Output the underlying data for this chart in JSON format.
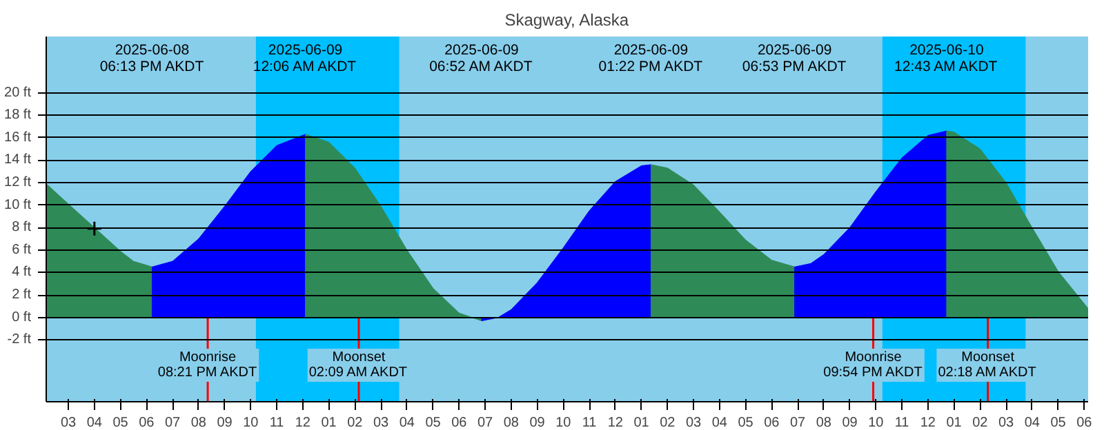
{
  "chart_data": {
    "type": "area",
    "title": "Skagway, Alaska",
    "xlim": [
      "2025-06-08T14:09",
      "2025-06-10T06:09"
    ],
    "xticks": [
      {
        "value": "2025-06-08T15:00",
        "label": "03"
      },
      {
        "value": "2025-06-08T16:00",
        "label": "04"
      },
      {
        "value": "2025-06-08T17:00",
        "label": "05"
      },
      {
        "value": "2025-06-08T18:00",
        "label": "06"
      },
      {
        "value": "2025-06-08T19:00",
        "label": "07"
      },
      {
        "value": "2025-06-08T20:00",
        "label": "08"
      },
      {
        "value": "2025-06-08T21:00",
        "label": "09"
      },
      {
        "value": "2025-06-08T22:00",
        "label": "10"
      },
      {
        "value": "2025-06-08T23:00",
        "label": "11"
      },
      {
        "value": "2025-06-09T00:00",
        "label": "12"
      },
      {
        "value": "2025-06-09T01:00",
        "label": "01"
      },
      {
        "value": "2025-06-09T02:00",
        "label": "02"
      },
      {
        "value": "2025-06-09T03:00",
        "label": "03"
      },
      {
        "value": "2025-06-09T04:00",
        "label": "04"
      },
      {
        "value": "2025-06-09T05:00",
        "label": "05"
      },
      {
        "value": "2025-06-09T06:00",
        "label": "06"
      },
      {
        "value": "2025-06-09T07:00",
        "label": "07"
      },
      {
        "value": "2025-06-09T08:00",
        "label": "08"
      },
      {
        "value": "2025-06-09T09:00",
        "label": "09"
      },
      {
        "value": "2025-06-09T10:00",
        "label": "10"
      },
      {
        "value": "2025-06-09T11:00",
        "label": "11"
      },
      {
        "value": "2025-06-09T12:00",
        "label": "12"
      },
      {
        "value": "2025-06-09T13:00",
        "label": "01"
      },
      {
        "value": "2025-06-09T14:00",
        "label": "02"
      },
      {
        "value": "2025-06-09T15:00",
        "label": "03"
      },
      {
        "value": "2025-06-09T16:00",
        "label": "04"
      },
      {
        "value": "2025-06-09T17:00",
        "label": "05"
      },
      {
        "value": "2025-06-09T18:00",
        "label": "06"
      },
      {
        "value": "2025-06-09T19:00",
        "label": "07"
      },
      {
        "value": "2025-06-09T20:00",
        "label": "08"
      },
      {
        "value": "2025-06-09T21:00",
        "label": "09"
      },
      {
        "value": "2025-06-09T22:00",
        "label": "10"
      },
      {
        "value": "2025-06-09T23:00",
        "label": "11"
      },
      {
        "value": "2025-06-10T00:00",
        "label": "12"
      },
      {
        "value": "2025-06-10T01:00",
        "label": "01"
      },
      {
        "value": "2025-06-10T02:00",
        "label": "02"
      },
      {
        "value": "2025-06-10T03:00",
        "label": "03"
      },
      {
        "value": "2025-06-10T04:00",
        "label": "04"
      },
      {
        "value": "2025-06-10T05:00",
        "label": "05"
      },
      {
        "value": "2025-06-10T06:00",
        "label": "06"
      }
    ],
    "ylim": [
      -7.5,
      25
    ],
    "yticks": [
      {
        "value": -2,
        "label": "-2 ft"
      },
      {
        "value": 0,
        "label": "0 ft"
      },
      {
        "value": 2,
        "label": "2 ft"
      },
      {
        "value": 4,
        "label": "4 ft"
      },
      {
        "value": 6,
        "label": "6 ft"
      },
      {
        "value": 8,
        "label": "8 ft"
      },
      {
        "value": 10,
        "label": "10 ft"
      },
      {
        "value": 12,
        "label": "12 ft"
      },
      {
        "value": 14,
        "label": "14 ft"
      },
      {
        "value": 16,
        "label": "16 ft"
      },
      {
        "value": 18,
        "label": "18 ft"
      },
      {
        "value": 20,
        "label": "20 ft"
      }
    ],
    "grid": "y",
    "series": [
      {
        "color": "#2e8b57",
        "x": [
          "2025-06-08T14:09",
          "2025-06-08T15:00",
          "2025-06-08T16:00",
          "2025-06-08T17:00",
          "2025-06-08T17:30",
          "2025-06-08T18:13"
        ],
        "values": [
          11.9,
          10.1,
          8.0,
          5.9,
          5.0,
          4.5
        ]
      },
      {
        "color": "#0000ff",
        "x": [
          "2025-06-08T18:13",
          "2025-06-08T19:00",
          "2025-06-08T20:00",
          "2025-06-08T21:00",
          "2025-06-08T22:00",
          "2025-06-08T23:00",
          "2025-06-09T00:06"
        ],
        "values": [
          4.5,
          5.0,
          7.0,
          9.9,
          13.0,
          15.3,
          16.3
        ]
      },
      {
        "color": "#2e8b57",
        "x": [
          "2025-06-09T00:06",
          "2025-06-09T01:00",
          "2025-06-09T02:00",
          "2025-06-09T03:00",
          "2025-06-09T04:00",
          "2025-06-09T05:00",
          "2025-06-09T06:00",
          "2025-06-09T06:52"
        ],
        "values": [
          16.3,
          15.6,
          13.3,
          9.9,
          6.0,
          2.6,
          0.4,
          -0.3
        ]
      },
      {
        "color": "#0000ff",
        "x": [
          "2025-06-09T06:52",
          "2025-06-09T07:30",
          "2025-06-09T08:00",
          "2025-06-09T09:00",
          "2025-06-09T10:00",
          "2025-06-09T11:00",
          "2025-06-09T12:00",
          "2025-06-09T13:00",
          "2025-06-09T13:22"
        ],
        "values": [
          -0.3,
          0.0,
          0.7,
          3.1,
          6.2,
          9.5,
          12.1,
          13.5,
          13.6
        ]
      },
      {
        "color": "#2e8b57",
        "x": [
          "2025-06-09T13:22",
          "2025-06-09T14:00",
          "2025-06-09T15:00",
          "2025-06-09T16:00",
          "2025-06-09T17:00",
          "2025-06-09T18:00",
          "2025-06-09T18:53"
        ],
        "values": [
          13.6,
          13.3,
          11.8,
          9.4,
          6.9,
          5.1,
          4.5
        ]
      },
      {
        "color": "#0000ff",
        "x": [
          "2025-06-09T18:53",
          "2025-06-09T19:30",
          "2025-06-09T20:00",
          "2025-06-09T21:00",
          "2025-06-09T22:00",
          "2025-06-09T23:00",
          "2025-06-10T00:00",
          "2025-06-10T00:43"
        ],
        "values": [
          4.5,
          4.8,
          5.6,
          8.0,
          11.2,
          14.2,
          16.2,
          16.6
        ]
      },
      {
        "color": "#2e8b57",
        "x": [
          "2025-06-10T00:43",
          "2025-06-10T01:00",
          "2025-06-10T02:00",
          "2025-06-10T03:00",
          "2025-06-10T04:00",
          "2025-06-10T05:00",
          "2025-06-10T06:09"
        ],
        "values": [
          16.6,
          16.5,
          15.0,
          12.0,
          8.0,
          4.1,
          0.8
        ]
      },
      {
        "type": "scatter",
        "marker": "cross",
        "color": "#000000",
        "x": [
          "2025-06-08T16:00"
        ],
        "values": [
          7.9
        ]
      }
    ],
    "bands": [
      {
        "axis": "x",
        "from": "2025-06-08T22:12",
        "to": "2025-06-09T03:42",
        "color": "#00bfff"
      },
      {
        "axis": "x",
        "from": "2025-06-09T22:15",
        "to": "2025-06-10T03:45",
        "color": "#00bfff"
      }
    ],
    "ref_lines": [
      {
        "axis": "x",
        "value": "2025-06-08T20:21",
        "label": "Moonrise\n08:21 PM AKDT",
        "color": "#ff0000"
      },
      {
        "axis": "x",
        "value": "2025-06-09T02:09",
        "label": "Moonset\n02:09 AM AKDT",
        "color": "#ff0000"
      },
      {
        "axis": "x",
        "value": "2025-06-09T21:54",
        "label": "Moonrise\n09:54 PM AKDT",
        "color": "#ff0000"
      },
      {
        "axis": "x",
        "value": "2025-06-10T02:18",
        "label": "Moonset\n02:18 AM AKDT",
        "color": "#ff0000"
      }
    ],
    "annotations": [
      "2025-06-08\n06:13 PM AKDT",
      "2025-06-09\n12:06 AM AKDT",
      "2025-06-09\n06:52 AM AKDT",
      "2025-06-09\n01:22 PM AKDT",
      "2025-06-09\n06:53 PM AKDT",
      "2025-06-10\n12:43 AM AKDT"
    ]
  }
}
